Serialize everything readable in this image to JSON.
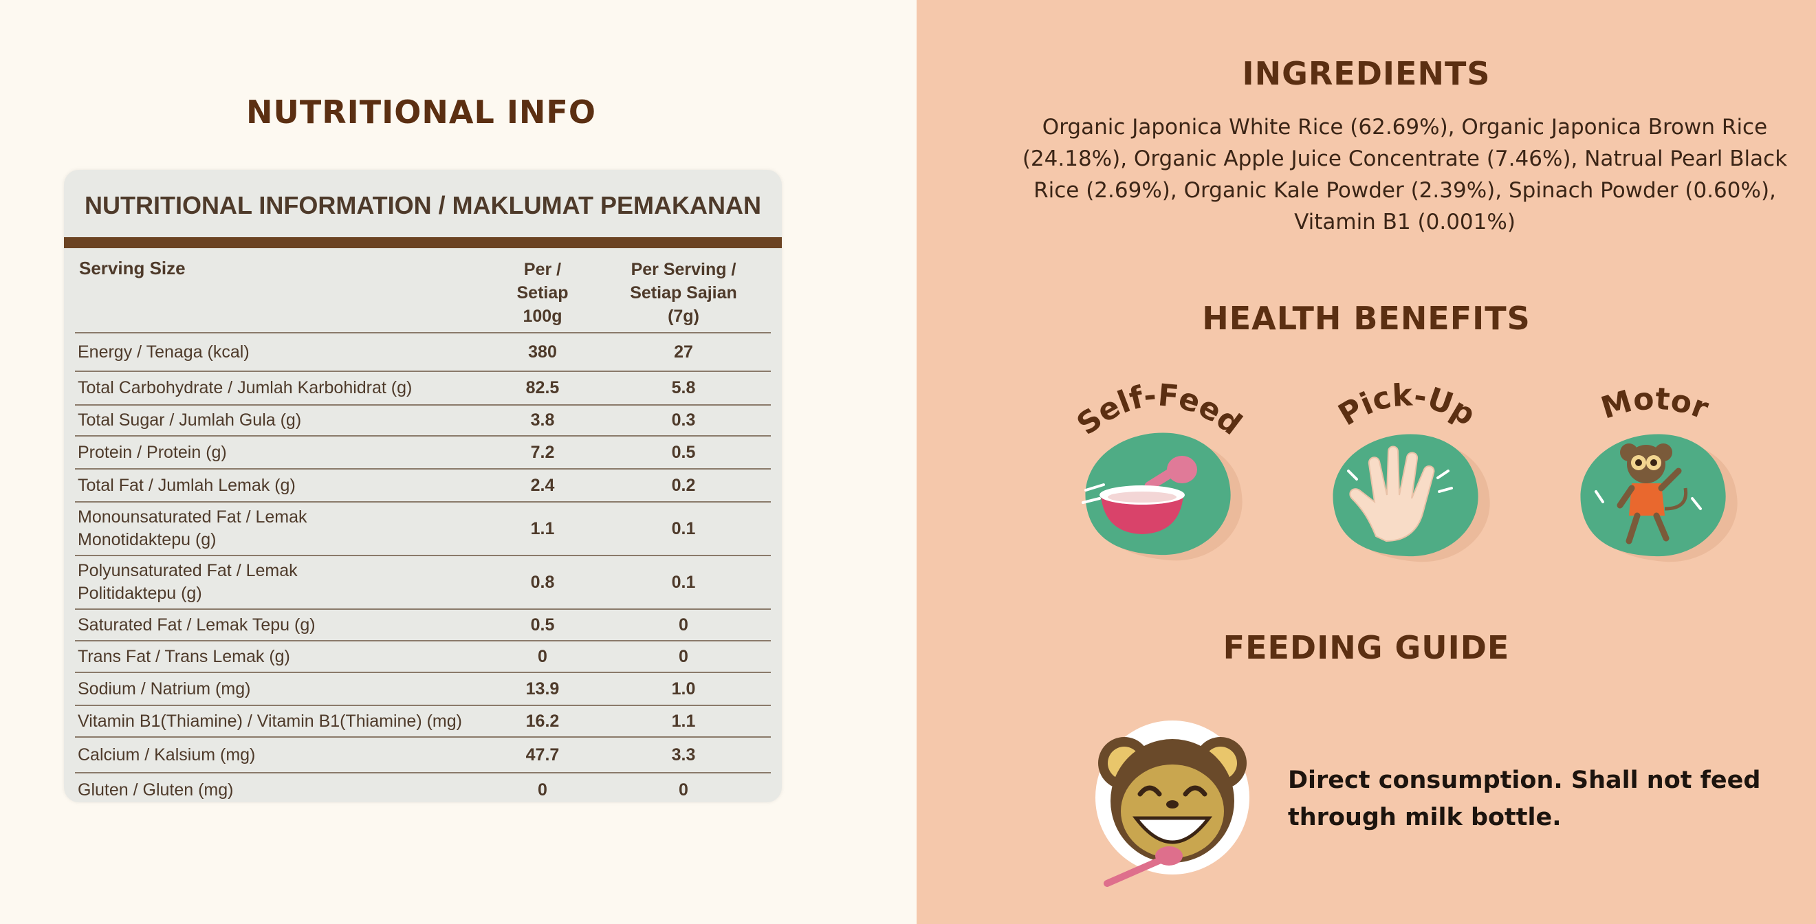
{
  "nutrition": {
    "section_title": "NUTRITIONAL INFO",
    "table_title": "NUTRITIONAL INFORMATION / MAKLUMAT PEMAKANAN",
    "serving_label": "Serving Size",
    "col1_label": "Per /\nSetiap\n100g",
    "col2_label": "Per Serving /\nSetiap Sajian\n(7g)",
    "rows": [
      {
        "name": "Energy / Tenaga (kcal)",
        "per100": "380",
        "perServing": "27"
      },
      {
        "name": "Total Carbohydrate / Jumlah Karbohidrat (g)",
        "per100": "82.5",
        "perServing": "5.8"
      },
      {
        "name": "Total Sugar / Jumlah Gula (g)",
        "per100": "3.8",
        "perServing": "0.3"
      },
      {
        "name": "Protein / Protein (g)",
        "per100": "7.2",
        "perServing": "0.5"
      },
      {
        "name": "Total Fat / Jumlah Lemak (g)",
        "per100": "2.4",
        "perServing": "0.2"
      },
      {
        "name": "Monounsaturated Fat / Lemak Monotidaktepu (g)",
        "per100": "1.1",
        "perServing": "0.1"
      },
      {
        "name": "Polyunsaturated Fat / Lemak Politidaktepu (g)",
        "per100": "0.8",
        "perServing": "0.1"
      },
      {
        "name": "Saturated Fat / Lemak Tepu (g)",
        "per100": "0.5",
        "perServing": "0"
      },
      {
        "name": "Trans Fat / Trans Lemak (g)",
        "per100": "0",
        "perServing": "0"
      },
      {
        "name": "Sodium / Natrium (mg)",
        "per100": "13.9",
        "perServing": "1.0"
      },
      {
        "name": "Vitamin B1(Thiamine) / Vitamin B1(Thiamine) (mg)",
        "per100": "16.2",
        "perServing": "1.1"
      },
      {
        "name": "Calcium / Kalsium (mg)",
        "per100": "47.7",
        "perServing": "3.3"
      },
      {
        "name": "Gluten / Gluten (mg)",
        "per100": "0",
        "perServing": "0"
      }
    ]
  },
  "ingredients": {
    "title": "INGREDIENTS",
    "text": "Organic Japonica White Rice (62.69%), Organic Japonica Brown Rice (24.18%), Organic Apple Juice Concentrate (7.46%), Natrual Pearl Black Rice (2.69%), Organic Kale Powder (2.39%), Spinach Powder (0.60%), Vitamin B1 (0.001%)"
  },
  "benefits": {
    "title": "HEALTH BENEFITS",
    "items": [
      {
        "label": "Self-Feed",
        "icon": "bowl-spoon-icon"
      },
      {
        "label": "Pick-Up",
        "icon": "hand-icon"
      },
      {
        "label": "Motor",
        "icon": "monkey-dancing-icon"
      }
    ]
  },
  "feeding": {
    "title": "FEEDING GUIDE",
    "text": "Direct consumption. Shall not feed through milk bottle.",
    "icon": "monkey-face-icon"
  },
  "colors": {
    "brown": "#5b2f12",
    "peach": "#f5c8ab",
    "cream": "#fdf9f1",
    "green": "#4fac85",
    "pink": "#de6f8c"
  }
}
